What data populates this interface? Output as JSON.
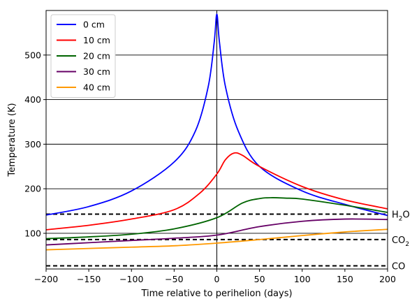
{
  "chart_data": {
    "type": "line",
    "xlabel": "Time relative to perihelion (days)",
    "ylabel": "Temperature (K)",
    "xlim": [
      -200,
      200
    ],
    "ylim": [
      20,
      600
    ],
    "xticks": [
      -200,
      -150,
      -100,
      -50,
      0,
      50,
      100,
      150,
      200
    ],
    "yticks": [
      100,
      200,
      300,
      400,
      500
    ],
    "xtick_labels": [
      "−200",
      "−150",
      "−100",
      "−50",
      "0",
      "50",
      "100",
      "150",
      "200"
    ],
    "ytick_labels": [
      "100",
      "200",
      "300",
      "400",
      "500"
    ],
    "grid": "horizontal",
    "legend_position": "top-left",
    "vline_x": 0,
    "series": [
      {
        "name": "0 cm",
        "color": "#0000ff",
        "x": [
          -200,
          -150,
          -100,
          -50,
          -25,
          -10,
          -3,
          0,
          3,
          10,
          25,
          50,
          100,
          150,
          200
        ],
        "y": [
          141,
          160,
          195,
          260,
          330,
          430,
          530,
          592,
          530,
          430,
          330,
          250,
          195,
          165,
          140
        ]
      },
      {
        "name": "10 cm",
        "color": "#ff0000",
        "x": [
          -200,
          -150,
          -100,
          -50,
          -20,
          0,
          10,
          20,
          30,
          50,
          100,
          150,
          200
        ],
        "y": [
          108,
          118,
          132,
          153,
          190,
          233,
          265,
          280,
          275,
          250,
          205,
          175,
          155
        ]
      },
      {
        "name": "20 cm",
        "color": "#006400",
        "x": [
          -200,
          -150,
          -100,
          -50,
          0,
          30,
          50,
          65,
          80,
          100,
          150,
          200
        ],
        "y": [
          88,
          92,
          98,
          110,
          135,
          168,
          178,
          180,
          179,
          177,
          163,
          147
        ]
      },
      {
        "name": "30 cm",
        "color": "#660066",
        "x": [
          -200,
          -150,
          -100,
          -50,
          0,
          50,
          100,
          150,
          200
        ],
        "y": [
          74,
          79,
          84,
          89,
          96,
          115,
          127,
          132,
          131
        ]
      },
      {
        "name": "40 cm",
        "color": "#ff9900",
        "x": [
          -200,
          -150,
          -100,
          -50,
          0,
          50,
          100,
          150,
          200
        ],
        "y": [
          63,
          66,
          69,
          72,
          78,
          86,
          95,
          103,
          109
        ]
      }
    ],
    "hlines": [
      {
        "label": "H₂O",
        "base": "H",
        "sub": "2",
        "rest": "O",
        "y": 143
      },
      {
        "label": "CO₂",
        "base": "CO",
        "sub": "2",
        "rest": "",
        "y": 86
      },
      {
        "label": "CO",
        "base": "CO",
        "sub": "",
        "rest": "",
        "y": 27
      }
    ]
  }
}
